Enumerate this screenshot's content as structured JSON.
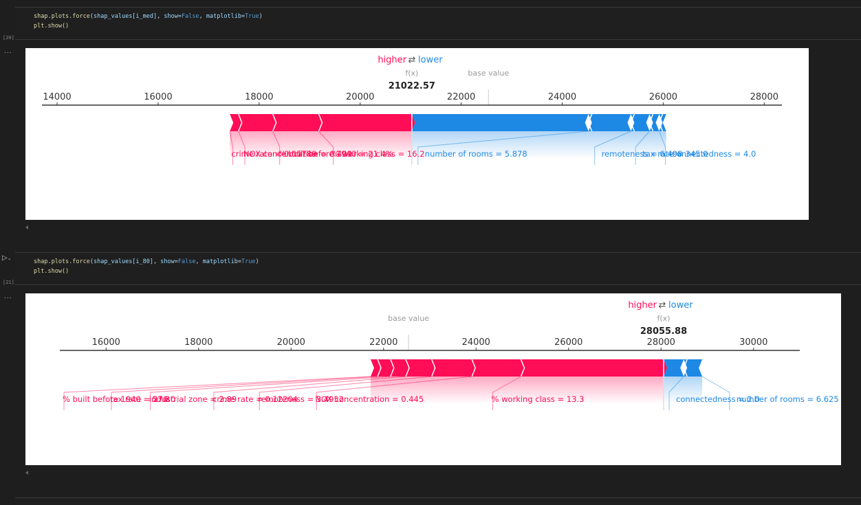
{
  "colors": {
    "pos": "#ff0d57",
    "neg": "#1e88e5",
    "axis": "#333333",
    "label_grey": "#999999"
  },
  "cells": [
    {
      "exec_count": "[20]",
      "ellipsis": "...",
      "code_fn": "shap.plots.force",
      "code_arg": "shap_values[i_med]",
      "code_kw1": "show",
      "code_v1": "False",
      "code_kw2": "matplotlib",
      "code_v2": "True",
      "code_line2": "plt.show()"
    },
    {
      "exec_count": "[21]",
      "ellipsis": "...",
      "code_fn": "shap.plots.force",
      "code_arg": "shap_values[i_80]",
      "code_kw1": "show",
      "code_v1": "False",
      "code_kw2": "matplotlib",
      "code_v2": "True",
      "code_line2": "plt.show()"
    }
  ],
  "chart_data": [
    {
      "type": "force",
      "legend_higher": "higher",
      "legend_arrow": "⇄",
      "legend_lower": "lower",
      "fx_label": "f(x)",
      "base_label": "base value",
      "fx_value": 21022.57,
      "fx_text": "21022.57",
      "base_value": 22540,
      "xlim": [
        13700,
        28350
      ],
      "ticks": [
        14000,
        16000,
        18000,
        20000,
        22000,
        24000,
        26000,
        28000
      ],
      "tick_labels": [
        "14000",
        "16000",
        "18000",
        "20000",
        "22000",
        "24000",
        "26000",
        "28000"
      ],
      "positive": [
        {
          "start": 17420,
          "end": 17590,
          "label": "crime rate = 0.05789"
        },
        {
          "start": 17590,
          "end": 18270,
          "label": "NOX concentration = 0.409"
        },
        {
          "start": 18270,
          "end": 19180,
          "label": "% built before 1940 = 21.4%"
        },
        {
          "start": 19180,
          "end": 21022.57,
          "label": "% working class = 16.2"
        }
      ],
      "negative": [
        {
          "start": 21022.57,
          "end": 24520,
          "label": "number of rooms = 5.878"
        },
        {
          "start": 24520,
          "end": 25360,
          "label": "remoteness = 6.498"
        },
        {
          "start": 25360,
          "end": 25730,
          "label": "tax rate = 345.0"
        },
        {
          "start": 25730,
          "end": 25920,
          "label": "connectedness = 4.0"
        },
        {
          "start": 25920,
          "end": 26060,
          "label": ""
        }
      ],
      "label_positions": {
        "pos": [
          17450,
          17690,
          18380,
          19440
        ],
        "neg": [
          21172,
          24670,
          25480,
          26070
        ]
      }
    },
    {
      "type": "force",
      "legend_higher": "higher",
      "legend_arrow": "⇄",
      "legend_lower": "lower",
      "fx_label": "f(x)",
      "base_label": "base value",
      "fx_value": 28055.88,
      "fx_text": "28055.88",
      "base_value": 22540,
      "xlim": [
        15000,
        31000
      ],
      "ticks": [
        16000,
        18000,
        20000,
        22000,
        24000,
        26000,
        28000,
        30000
      ],
      "tick_labels": [
        "16000",
        "18000",
        "20000",
        "22000",
        "24000",
        "26000",
        "28000",
        "30000"
      ],
      "positive": [
        {
          "start": 21720,
          "end": 21870,
          "label": "% built before 1940 = 57.8"
        },
        {
          "start": 21870,
          "end": 22150,
          "label": "tax rate = 276.0"
        },
        {
          "start": 22150,
          "end": 22480,
          "label": "industrial zone = 2.89"
        },
        {
          "start": 22480,
          "end": 23040,
          "label": "crime rate = 0.12204"
        },
        {
          "start": 23040,
          "end": 23910,
          "label": "remoteness = 3.4952"
        },
        {
          "start": 23910,
          "end": 24970,
          "label": "NOX concentration = 0.445"
        },
        {
          "start": 24970,
          "end": 28055.88,
          "label": "% working class = 13.3"
        }
      ],
      "negative": [
        {
          "start": 28055.88,
          "end": 28490,
          "label": "connectedness = 2.0"
        },
        {
          "start": 28490,
          "end": 28890,
          "label": "number of rooms = 6.625"
        }
      ],
      "label_positions": {
        "pos": [
          15060,
          16085,
          16930,
          18300,
          19285,
          20520,
          24330
        ],
        "neg": [
          28205,
          29510
        ]
      }
    }
  ]
}
